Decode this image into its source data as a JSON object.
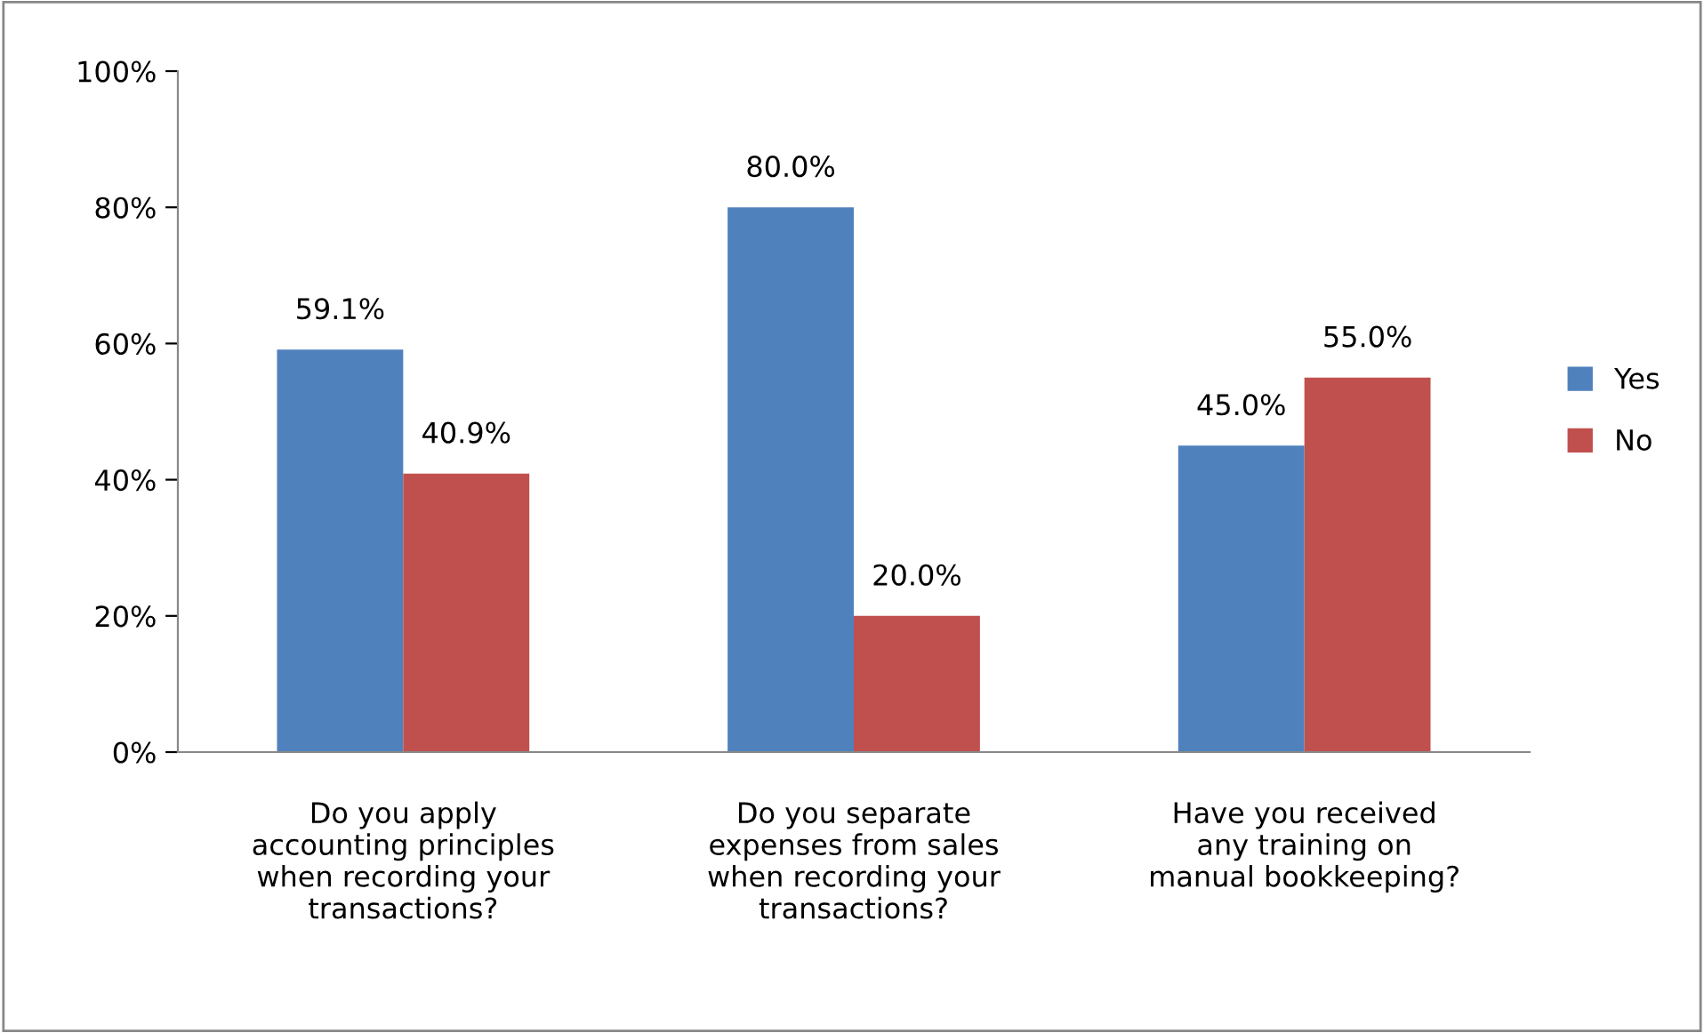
{
  "chart_data": {
    "type": "bar",
    "categories": [
      "Do you apply\naccounting principles\nwhen recording your\ntransactions?",
      "Do you separate\nexpenses from sales\nwhen recording your\ntransactions?",
      "Have you received\nany training on\nmanual bookkeeping?"
    ],
    "series": [
      {
        "name": "Yes",
        "color": "#4f81bd",
        "values": [
          59.1,
          80.0,
          45.0
        ],
        "value_labels": [
          "59.1%",
          "80.0%",
          "45.0%"
        ]
      },
      {
        "name": "No",
        "color": "#c0504d",
        "values": [
          40.9,
          20.0,
          55.0
        ],
        "value_labels": [
          "40.9%",
          "20.0%",
          "55.0%"
        ]
      }
    ],
    "ylim": [
      0,
      100
    ],
    "yticks": [
      {
        "value": 0,
        "label": "0%"
      },
      {
        "value": 20,
        "label": "20%"
      },
      {
        "value": 40,
        "label": "40%"
      },
      {
        "value": 60,
        "label": "60%"
      },
      {
        "value": 80,
        "label": "80%"
      },
      {
        "value": 100,
        "label": "100%"
      }
    ],
    "grid": false,
    "legend": "right"
  }
}
